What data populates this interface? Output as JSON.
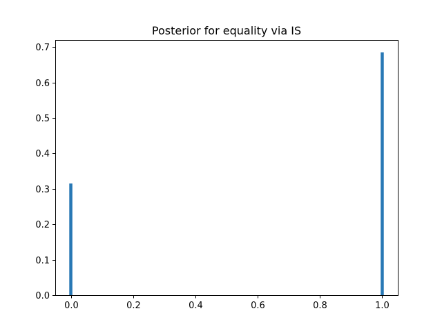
{
  "chart_data": {
    "type": "bar",
    "title": "Posterior for equality via IS",
    "xlabel": "",
    "ylabel": "",
    "series": [
      {
        "x": [
          0.0,
          1.0
        ],
        "values": [
          0.315,
          0.685
        ],
        "bar_width": 0.01,
        "color": "#2878b5"
      }
    ],
    "xlim": [
      -0.05,
      1.05
    ],
    "ylim": [
      0,
      0.72
    ],
    "xticks": [
      0.0,
      0.2,
      0.4,
      0.6,
      0.8,
      1.0
    ],
    "xtick_labels": [
      "0.0",
      "0.2",
      "0.4",
      "0.6",
      "0.8",
      "1.0"
    ],
    "yticks": [
      0.0,
      0.1,
      0.2,
      0.3,
      0.4,
      0.5,
      0.6,
      0.7
    ],
    "ytick_labels": [
      "0.0",
      "0.1",
      "0.2",
      "0.3",
      "0.4",
      "0.5",
      "0.6",
      "0.7"
    ],
    "grid": false,
    "legend": "none"
  }
}
